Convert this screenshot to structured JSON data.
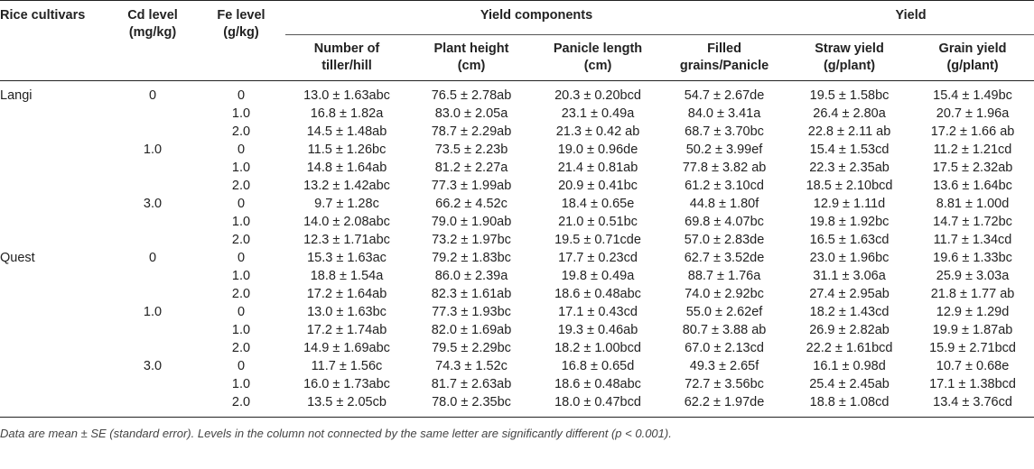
{
  "headers": {
    "cultivar": "Rice cultivars",
    "cd_line1": "Cd level",
    "cd_line2": "(mg/kg)",
    "fe_line1": "Fe level",
    "fe_line2": "(g/kg)",
    "yield_components": "Yield components",
    "yield": "Yield",
    "tiller_line1": "Number of",
    "tiller_line2": "tiller/hill",
    "height_line1": "Plant height",
    "height_line2": "(cm)",
    "panicle_line1": "Panicle length",
    "panicle_line2": "(cm)",
    "grains_line1": "Filled",
    "grains_line2": "grains/Panicle",
    "straw_line1": "Straw yield",
    "straw_line2": "(g/plant)",
    "grain_line1": "Grain yield",
    "grain_line2": "(g/plant)"
  },
  "rows": [
    {
      "cultivar": "Langi",
      "cd": "0",
      "fe": "0",
      "tiller": "13.0 ± 1.63abc",
      "height": "76.5 ± 2.78ab",
      "panicle": "20.3 ± 0.20bcd",
      "grains": "54.7 ± 2.67de",
      "straw": "19.5 ± 1.58bc",
      "grain": "15.4 ± 1.49bc"
    },
    {
      "cultivar": "",
      "cd": "",
      "fe": "1.0",
      "tiller": "16.8 ± 1.82a",
      "height": "83.0 ± 2.05a",
      "panicle": "23.1 ± 0.49a",
      "grains": "84.0 ± 3.41a",
      "straw": "26.4 ± 2.80a",
      "grain": "20.7 ± 1.96a"
    },
    {
      "cultivar": "",
      "cd": "",
      "fe": "2.0",
      "tiller": "14.5 ± 1.48ab",
      "height": "78.7 ± 2.29ab",
      "panicle": "21.3 ± 0.42 ab",
      "grains": "68.7 ± 3.70bc",
      "straw": "22.8 ± 2.11 ab",
      "grain": "17.2 ± 1.66 ab"
    },
    {
      "cultivar": "",
      "cd": "1.0",
      "fe": "0",
      "tiller": "11.5 ± 1.26bc",
      "height": "73.5 ± 2.23b",
      "panicle": "19.0 ± 0.96de",
      "grains": "50.2 ± 3.99ef",
      "straw": "15.4 ± 1.53cd",
      "grain": "11.2 ± 1.21cd"
    },
    {
      "cultivar": "",
      "cd": "",
      "fe": "1.0",
      "tiller": "14.8 ± 1.64ab",
      "height": "81.2 ± 2.27a",
      "panicle": "21.4 ± 0.81ab",
      "grains": "77.8 ± 3.82 ab",
      "straw": "22.3 ± 2.35ab",
      "grain": "17.5 ± 2.32ab"
    },
    {
      "cultivar": "",
      "cd": "",
      "fe": "2.0",
      "tiller": "13.2 ± 1.42abc",
      "height": "77.3 ± 1.99ab",
      "panicle": "20.9 ± 0.41bc",
      "grains": "61.2 ± 3.10cd",
      "straw": "18.5 ± 2.10bcd",
      "grain": "13.6 ± 1.64bc"
    },
    {
      "cultivar": "",
      "cd": "3.0",
      "fe": "0",
      "tiller": "9.7 ± 1.28c",
      "height": "66.2 ± 4.52c",
      "panicle": "18.4 ± 0.65e",
      "grains": "44.8 ± 1.80f",
      "straw": "12.9 ± 1.11d",
      "grain": "8.81 ± 1.00d"
    },
    {
      "cultivar": "",
      "cd": "",
      "fe": "1.0",
      "tiller": "14.0 ± 2.08abc",
      "height": "79.0 ± 1.90ab",
      "panicle": "21.0 ± 0.51bc",
      "grains": "69.8 ± 4.07bc",
      "straw": "19.8 ± 1.92bc",
      "grain": "14.7 ± 1.72bc"
    },
    {
      "cultivar": "",
      "cd": "",
      "fe": "2.0",
      "tiller": "12.3 ± 1.71abc",
      "height": "73.2 ± 1.97bc",
      "panicle": "19.5 ± 0.71cde",
      "grains": "57.0 ± 2.83de",
      "straw": "16.5 ± 1.63cd",
      "grain": "11.7 ± 1.34cd"
    },
    {
      "cultivar": "Quest",
      "cd": "0",
      "fe": "0",
      "tiller": "15.3 ± 1.63ac",
      "height": "79.2 ± 1.83bc",
      "panicle": "17.7 ± 0.23cd",
      "grains": "62.7 ± 3.52de",
      "straw": "23.0 ± 1.96bc",
      "grain": "19.6 ± 1.33bc"
    },
    {
      "cultivar": "",
      "cd": "",
      "fe": "1.0",
      "tiller": "18.8 ± 1.54a",
      "height": "86.0 ± 2.39a",
      "panicle": "19.8 ± 0.49a",
      "grains": "88.7 ± 1.76a",
      "straw": "31.1 ± 3.06a",
      "grain": "25.9 ± 3.03a"
    },
    {
      "cultivar": "",
      "cd": "",
      "fe": "2.0",
      "tiller": "17.2 ± 1.64ab",
      "height": "82.3 ± 1.61ab",
      "panicle": "18.6 ± 0.48abc",
      "grains": "74.0 ± 2.92bc",
      "straw": "27.4 ± 2.95ab",
      "grain": "21.8 ± 1.77 ab"
    },
    {
      "cultivar": "",
      "cd": "1.0",
      "fe": "0",
      "tiller": "13.0 ± 1.63bc",
      "height": "77.3 ± 1.93bc",
      "panicle": "17.1 ± 0.43cd",
      "grains": "55.0 ± 2.62ef",
      "straw": "18.2 ± 1.43cd",
      "grain": "12.9 ± 1.29d"
    },
    {
      "cultivar": "",
      "cd": "",
      "fe": "1.0",
      "tiller": "17.2 ± 1.74ab",
      "height": "82.0 ± 1.69ab",
      "panicle": "19.3 ± 0.46ab",
      "grains": "80.7 ± 3.88 ab",
      "straw": "26.9 ± 2.82ab",
      "grain": "19.9 ± 1.87ab"
    },
    {
      "cultivar": "",
      "cd": "",
      "fe": "2.0",
      "tiller": "14.9 ± 1.69abc",
      "height": "79.5 ± 2.29bc",
      "panicle": "18.2 ± 1.00bcd",
      "grains": "67.0 ± 2.13cd",
      "straw": "22.2 ± 1.61bcd",
      "grain": "15.9 ± 2.71bcd"
    },
    {
      "cultivar": "",
      "cd": "3.0",
      "fe": "0",
      "tiller": "11.7 ± 1.56c",
      "height": "74.3 ± 1.52c",
      "panicle": "16.8 ± 0.65d",
      "grains": "49.3 ± 2.65f",
      "straw": "16.1 ± 0.98d",
      "grain": "10.7 ± 0.68e"
    },
    {
      "cultivar": "",
      "cd": "",
      "fe": "1.0",
      "tiller": "16.0 ± 1.73abc",
      "height": "81.7 ± 2.63ab",
      "panicle": "18.6 ± 0.48abc",
      "grains": "72.7 ± 3.56bc",
      "straw": "25.4 ± 2.45ab",
      "grain": "17.1 ± 1.38bcd"
    },
    {
      "cultivar": "",
      "cd": "",
      "fe": "2.0",
      "tiller": "13.5 ± 2.05cb",
      "height": "78.0 ± 2.35bc",
      "panicle": "18.0 ± 0.47bcd",
      "grains": "62.2 ± 1.97de",
      "straw": "18.8 ± 1.08cd",
      "grain": "13.4 ± 3.76cd"
    }
  ],
  "footnote": "Data are mean ± SE (standard error). Levels in the column not connected by the same letter are significantly different (p < 0.001)."
}
